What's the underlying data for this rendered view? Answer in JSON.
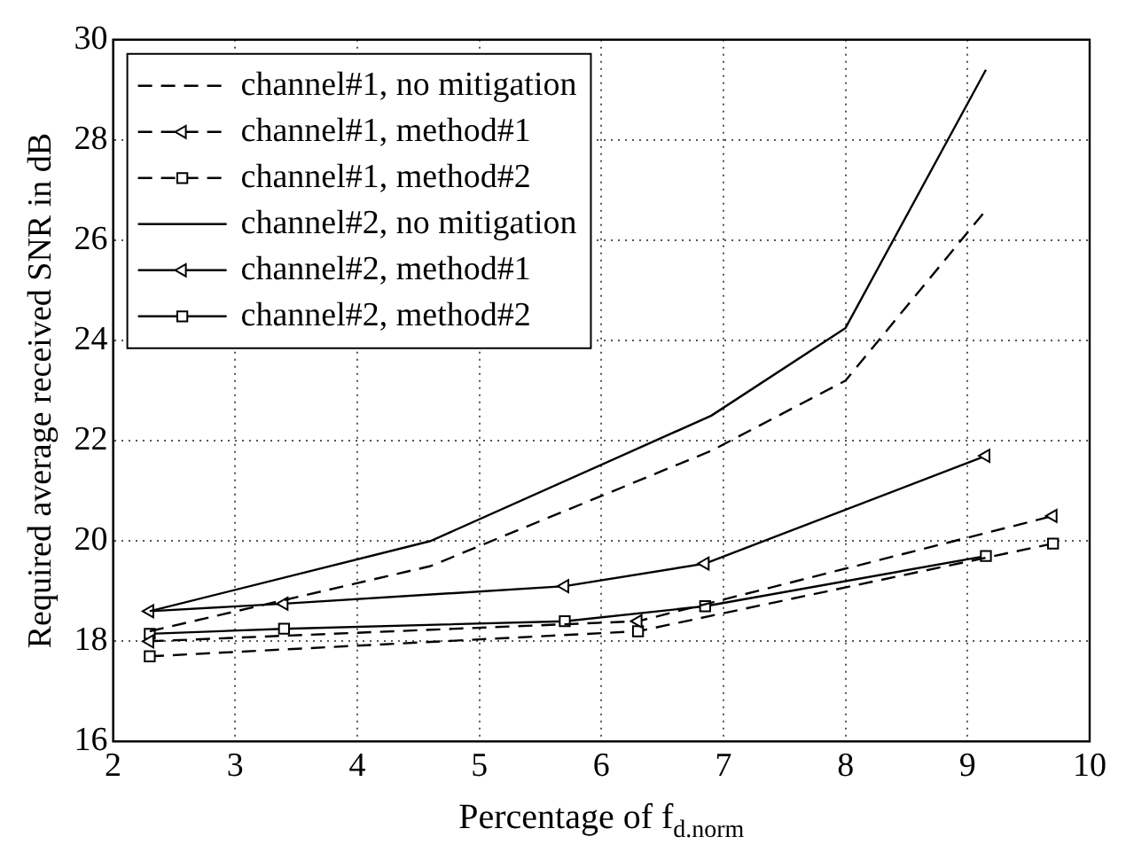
{
  "chart_data": {
    "type": "line",
    "xlabel": "Percentage of f$_{d.norm}$",
    "ylabel": "Required average received SNR in dB",
    "xlim": [
      2,
      10
    ],
    "xticks": [
      2,
      3,
      4,
      5,
      6,
      7,
      8,
      9,
      10
    ],
    "ylim": [
      16,
      30
    ],
    "yticks": [
      16,
      18,
      20,
      22,
      24,
      26,
      28,
      30
    ],
    "grid": true,
    "legend": "top left",
    "series": [
      {
        "name": "channel#1, no mitigation",
        "color": "#000000",
        "line_style": "dashed",
        "marker": "none",
        "x": [
          2.3,
          4.6,
          6.9,
          8,
          9.15
        ],
        "values": [
          18.2,
          19.5,
          21.8,
          23.2,
          26.6
        ]
      },
      {
        "name": "channel#1, method#1",
        "color": "#000000",
        "line_style": "dashed",
        "marker": "triangle",
        "x": [
          2.3,
          6.3,
          9.7
        ],
        "values": [
          18.0,
          18.4,
          20.5
        ]
      },
      {
        "name": "channel#1, method#2",
        "color": "#000000",
        "line_style": "dashed",
        "marker": "square",
        "x": [
          2.3,
          6.3,
          9.7
        ],
        "values": [
          17.7,
          18.2,
          19.95
        ]
      },
      {
        "name": "channel#2, no mitigation",
        "color": "#000000",
        "line_style": "solid",
        "marker": "none",
        "x": [
          2.3,
          4.6,
          6.9,
          8,
          9.15
        ],
        "values": [
          18.6,
          20.0,
          22.5,
          24.25,
          29.4
        ]
      },
      {
        "name": "channel#2, method#1",
        "color": "#000000",
        "line_style": "solid",
        "marker": "triangle",
        "x": [
          2.3,
          3.4,
          5.7,
          6.85,
          9.15
        ],
        "values": [
          18.6,
          18.75,
          19.1,
          19.55,
          21.7
        ]
      },
      {
        "name": "channel#2, method#2",
        "color": "#000000",
        "line_style": "solid",
        "marker": "square",
        "x": [
          2.3,
          3.4,
          5.7,
          6.85,
          9.15
        ],
        "values": [
          18.15,
          18.25,
          18.4,
          18.7,
          19.7
        ]
      }
    ]
  }
}
